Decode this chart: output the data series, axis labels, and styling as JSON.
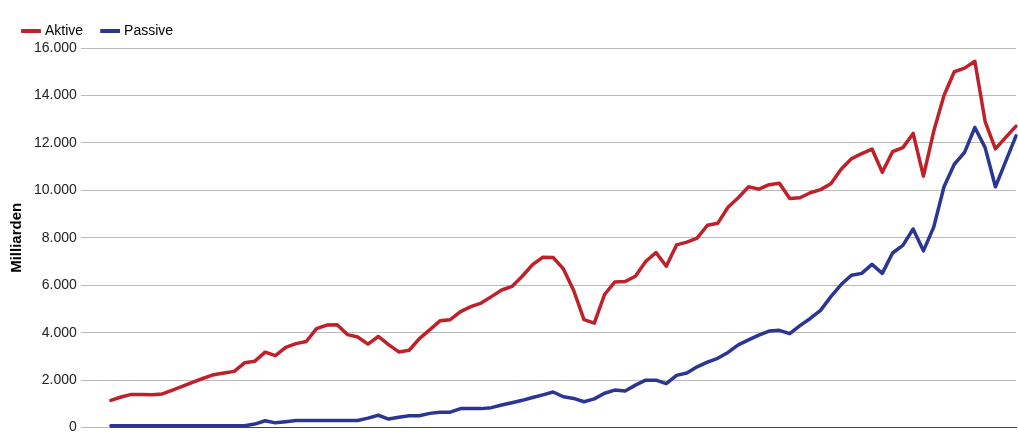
{
  "chart_data": {
    "type": "line",
    "ylabel": "Milliarden",
    "categories": [
      null,
      null,
      null,
      null,
      null,
      null,
      null,
      null,
      null,
      null,
      null,
      null,
      null,
      null,
      null,
      null,
      null,
      null,
      null,
      null,
      null,
      null,
      null,
      null,
      null,
      null,
      null,
      null,
      null,
      null,
      null,
      null,
      null,
      null,
      null,
      null,
      null,
      null,
      null,
      null,
      null,
      null,
      null,
      null,
      null,
      null,
      null,
      null,
      null,
      null,
      null,
      null,
      null,
      null,
      null,
      null,
      null,
      null,
      null,
      null,
      null,
      null,
      null,
      null,
      null,
      null,
      null,
      null,
      null,
      null,
      null,
      null,
      null,
      null,
      null,
      null,
      null,
      null,
      null,
      null,
      null,
      null,
      null,
      null,
      null,
      null,
      null,
      null,
      null
    ],
    "series": [
      {
        "name": "Aktive",
        "color": "#c0202a",
        "values": [
          1150,
          1290,
          1400,
          1390,
          1380,
          1420,
          1580,
          1750,
          1920,
          2080,
          2230,
          2300,
          2370,
          2730,
          2800,
          3180,
          3030,
          3380,
          3540,
          3630,
          4170,
          4320,
          4340,
          3920,
          3820,
          3520,
          3840,
          3500,
          3190,
          3260,
          3750,
          4120,
          4500,
          4550,
          4890,
          5100,
          5250,
          5520,
          5800,
          5950,
          6380,
          6870,
          7180,
          7170,
          6690,
          5780,
          4550,
          4400,
          5610,
          6140,
          6160,
          6380,
          7000,
          7380,
          6800,
          7700,
          7820,
          7990,
          8530,
          8610,
          9290,
          9690,
          10150,
          10050,
          10240,
          10300,
          9660,
          9690,
          9900,
          10030,
          10280,
          10890,
          11330,
          11550,
          11740,
          10760,
          11630,
          11800,
          12400,
          10600,
          12490,
          14000,
          15000,
          15150,
          15440,
          12900,
          11750,
          12230,
          12710
        ]
      },
      {
        "name": "Passive",
        "color": "#2b3594",
        "values": [
          80,
          80,
          80,
          80,
          80,
          80,
          80,
          80,
          80,
          80,
          80,
          80,
          80,
          80,
          150,
          290,
          200,
          250,
          300,
          300,
          300,
          300,
          300,
          300,
          300,
          400,
          520,
          360,
          440,
          500,
          500,
          600,
          650,
          650,
          800,
          800,
          800,
          840,
          950,
          1050,
          1150,
          1270,
          1380,
          1500,
          1300,
          1230,
          1090,
          1210,
          1450,
          1580,
          1540,
          1790,
          2000,
          2000,
          1850,
          2200,
          2300,
          2560,
          2760,
          2920,
          3170,
          3490,
          3700,
          3900,
          4070,
          4100,
          3960,
          4300,
          4600,
          4940,
          5520,
          6030,
          6420,
          6500,
          6880,
          6500,
          7360,
          7680,
          8370,
          7450,
          8450,
          10150,
          11100,
          11600,
          12650,
          11800,
          10150,
          11220,
          12300
        ]
      }
    ],
    "ylim": [
      0,
      16000
    ],
    "yticks": [
      0,
      {
        "value": 2000,
        "label": "2.000"
      },
      {
        "value": 4000,
        "label": "4.000"
      },
      {
        "value": 6000,
        "label": "6.000"
      },
      {
        "value": 8000,
        "label": "8.000"
      },
      {
        "value": 10000,
        "label": "10.000"
      },
      {
        "value": 12000,
        "label": "12.000"
      },
      {
        "value": 14000,
        "label": "14.000"
      },
      {
        "value": 16000,
        "label": "16.000"
      }
    ],
    "grid": "y",
    "legend": "top left",
    "tick_labels": "y",
    "marker": "none",
    "line_style": "solid"
  }
}
